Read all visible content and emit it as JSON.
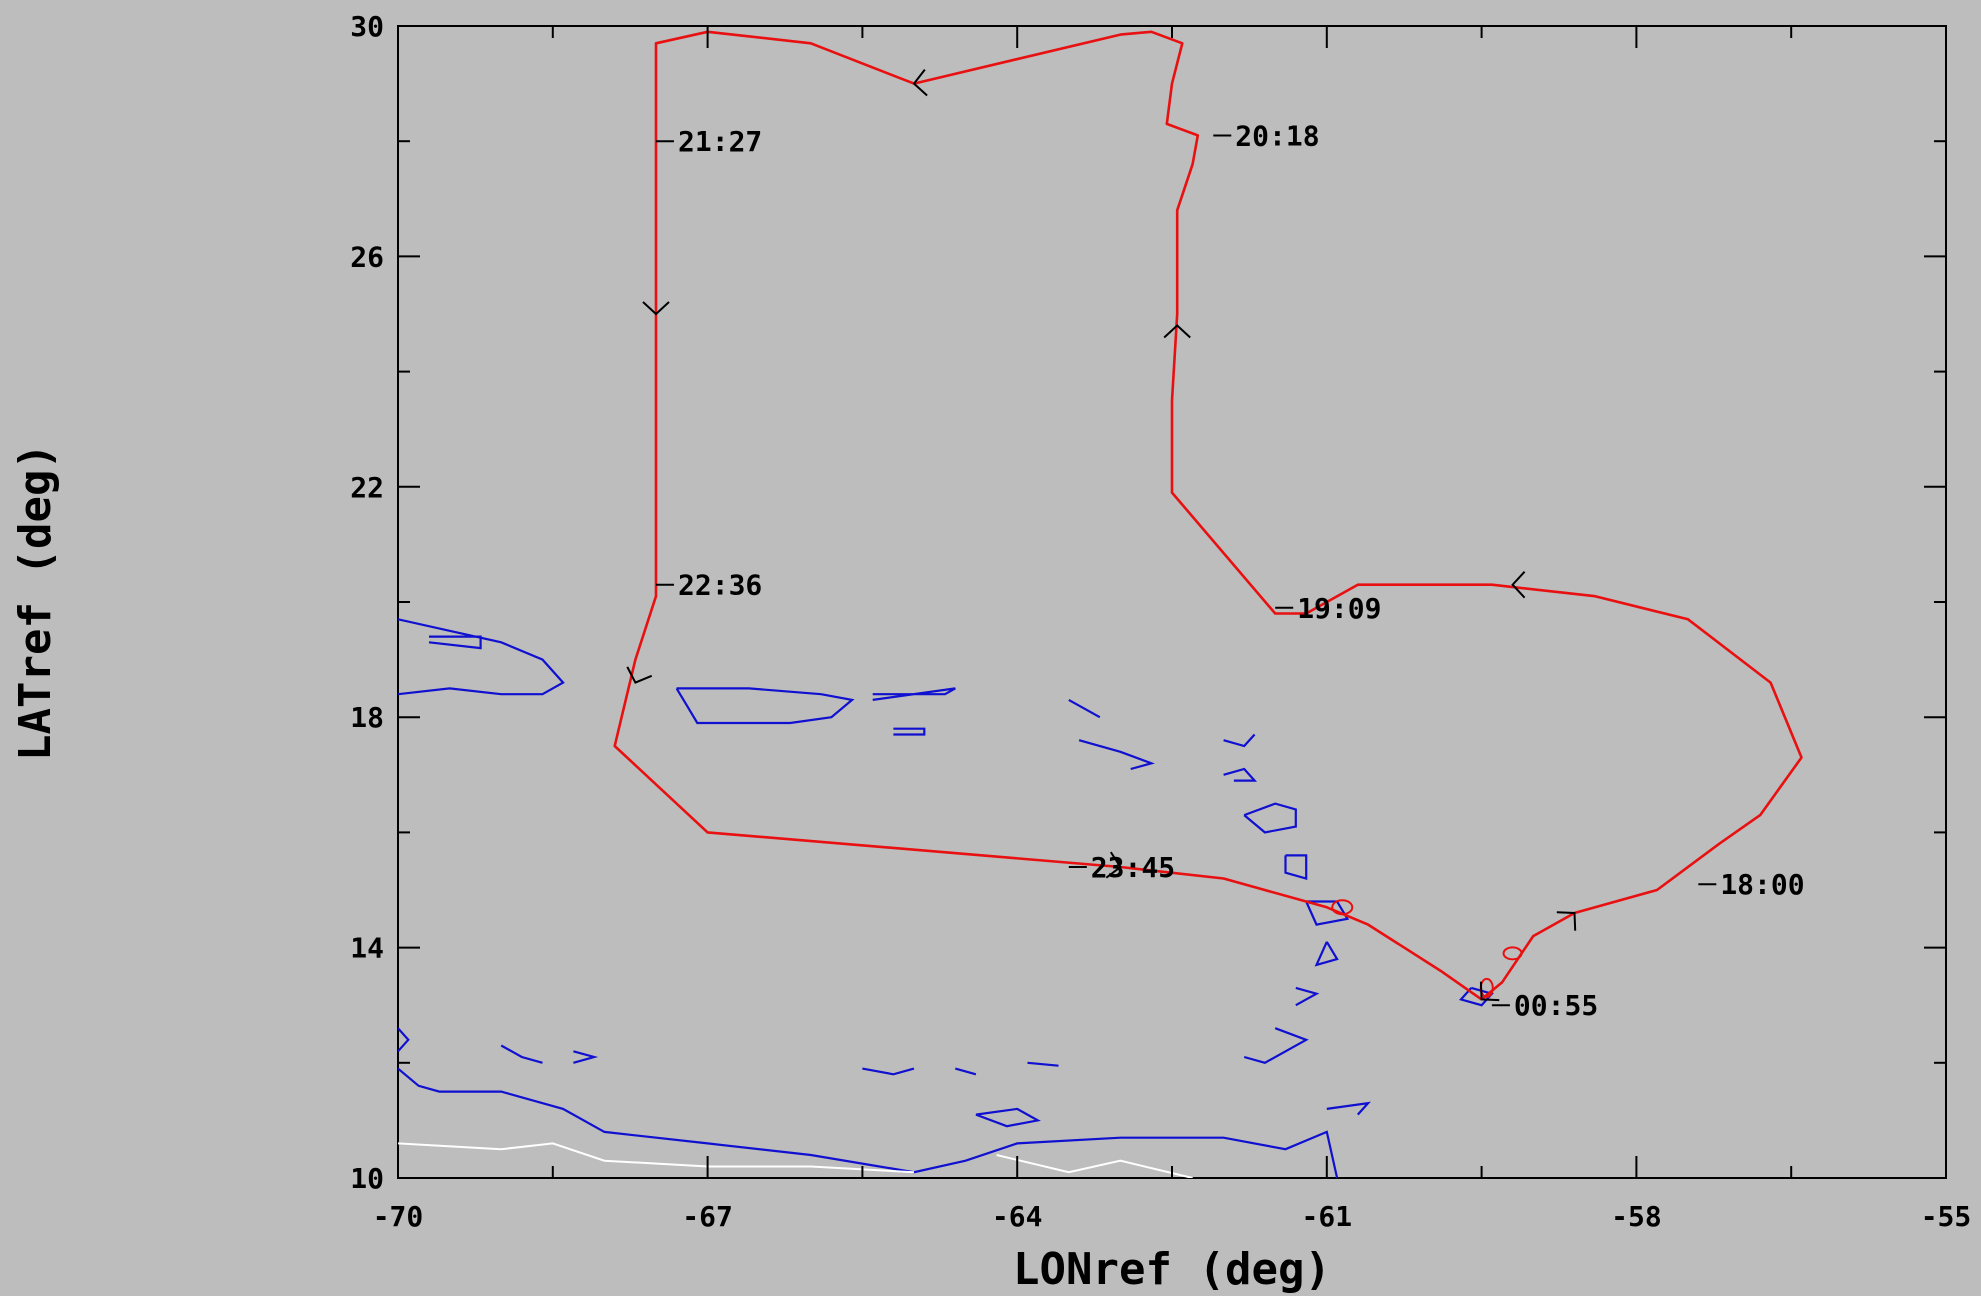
{
  "chart_data": {
    "type": "line",
    "xlabel": "LONref (deg)",
    "ylabel": "LATref (deg)",
    "xlim": [
      -70,
      -55
    ],
    "ylim": [
      10,
      30
    ],
    "x_ticks": [
      "-70",
      "-67",
      "-64",
      "-61",
      "-58",
      "-55"
    ],
    "y_ticks": [
      "10",
      "14",
      "18",
      "22",
      "26",
      "30"
    ],
    "colors": {
      "track": "#e81010",
      "coast": "#1010d0",
      "border": "#ffffff",
      "background": "#bdbdbd",
      "river": "#9fd6e8"
    },
    "series": [
      {
        "type": "flight-track",
        "points": [
          [
            -59.5,
            13.1
          ],
          [
            -59.3,
            13.4
          ],
          [
            -59.0,
            14.2
          ],
          [
            -58.6,
            14.6
          ],
          [
            -57.8,
            15.0
          ],
          [
            -57.2,
            15.8
          ],
          [
            -56.8,
            16.3
          ],
          [
            -56.4,
            17.3
          ],
          [
            -56.7,
            18.6
          ],
          [
            -57.5,
            19.7
          ],
          [
            -58.4,
            20.1
          ],
          [
            -59.4,
            20.3
          ],
          [
            -60.7,
            20.3
          ],
          [
            -61.2,
            19.8
          ],
          [
            -61.5,
            19.8
          ],
          [
            -62.5,
            21.9
          ],
          [
            -62.5,
            23.5
          ],
          [
            -62.45,
            25.0
          ],
          [
            -62.45,
            26.8
          ],
          [
            -62.3,
            27.6
          ],
          [
            -62.25,
            28.1
          ],
          [
            -62.55,
            28.3
          ],
          [
            -62.5,
            29.0
          ],
          [
            -62.4,
            29.7
          ],
          [
            -62.7,
            29.9
          ],
          [
            -63.0,
            29.85
          ],
          [
            -65.0,
            29.0
          ],
          [
            -66.0,
            29.7
          ],
          [
            -67.0,
            29.9
          ],
          [
            -67.5,
            29.7
          ],
          [
            -67.5,
            27.0
          ],
          [
            -67.5,
            24.5
          ],
          [
            -67.5,
            20.1
          ],
          [
            -67.7,
            19.0
          ],
          [
            -67.9,
            17.5
          ],
          [
            -67.0,
            16.0
          ],
          [
            -63.0,
            15.4
          ],
          [
            -62.0,
            15.2
          ],
          [
            -61.0,
            14.7
          ],
          [
            -60.6,
            14.4
          ],
          [
            -59.9,
            13.6
          ],
          [
            -59.5,
            13.1
          ]
        ]
      }
    ],
    "annotations": [
      {
        "text": "21:27",
        "lon": -67.5,
        "lat": 28.0
      },
      {
        "text": "20:18",
        "lon": -62.1,
        "lat": 28.1
      },
      {
        "text": "22:36",
        "lon": -67.5,
        "lat": 20.3
      },
      {
        "text": "19:09",
        "lon": -61.5,
        "lat": 19.9
      },
      {
        "text": "18:00",
        "lon": -57.4,
        "lat": 15.1
      },
      {
        "text": "23:45",
        "lon": -63.5,
        "lat": 15.4
      },
      {
        "text": "00:55",
        "lon": -59.4,
        "lat": 13.0
      }
    ],
    "direction_arrows": [
      {
        "lon": -65.0,
        "lat": 29.0,
        "heading": 265
      },
      {
        "lon": -67.5,
        "lat": 25.0,
        "heading": 180
      },
      {
        "lon": -62.45,
        "lat": 24.8,
        "heading": 0
      },
      {
        "lon": -59.2,
        "lat": 20.3,
        "heading": 270
      },
      {
        "lon": -58.6,
        "lat": 14.6,
        "heading": 45
      },
      {
        "lon": -63.0,
        "lat": 15.4,
        "heading": 100
      },
      {
        "lon": -67.7,
        "lat": 18.6,
        "heading": 200
      },
      {
        "lon": -59.5,
        "lat": 13.1,
        "heading": 225
      }
    ],
    "coastlines": [
      [
        [
          -70.0,
          19.7
        ],
        [
          -69.5,
          19.5
        ],
        [
          -69.0,
          19.3
        ],
        [
          -68.6,
          19.0
        ],
        [
          -68.4,
          18.6
        ],
        [
          -68.6,
          18.4
        ],
        [
          -69.0,
          18.4
        ],
        [
          -69.5,
          18.5
        ],
        [
          -70.0,
          18.4
        ]
      ],
      [
        [
          -69.7,
          19.4
        ],
        [
          -69.2,
          19.4
        ],
        [
          -69.2,
          19.2
        ],
        [
          -69.7,
          19.3
        ]
      ],
      [
        [
          -67.3,
          18.5
        ],
        [
          -66.6,
          18.5
        ],
        [
          -65.9,
          18.4
        ],
        [
          -65.6,
          18.3
        ],
        [
          -65.8,
          18.0
        ],
        [
          -66.2,
          17.9
        ],
        [
          -67.1,
          17.9
        ],
        [
          -67.2,
          18.2
        ],
        [
          -67.3,
          18.5
        ]
      ],
      [
        [
          -65.4,
          18.4
        ],
        [
          -64.7,
          18.4
        ],
        [
          -64.6,
          18.5
        ],
        [
          -65.4,
          18.3
        ]
      ],
      [
        [
          -65.2,
          17.8
        ],
        [
          -64.9,
          17.8
        ],
        [
          -64.9,
          17.7
        ],
        [
          -65.2,
          17.7
        ]
      ],
      [
        [
          -63.5,
          18.3
        ],
        [
          -63.2,
          18.0
        ]
      ],
      [
        [
          -63.4,
          17.6
        ],
        [
          -63.0,
          17.4
        ],
        [
          -62.7,
          17.2
        ],
        [
          -62.9,
          17.1
        ]
      ],
      [
        [
          -62.0,
          17.6
        ],
        [
          -61.8,
          17.5
        ],
        [
          -61.7,
          17.7
        ]
      ],
      [
        [
          -62.0,
          17.0
        ],
        [
          -61.8,
          17.1
        ],
        [
          -61.7,
          16.9
        ],
        [
          -61.9,
          16.9
        ]
      ],
      [
        [
          -61.8,
          16.3
        ],
        [
          -61.5,
          16.5
        ],
        [
          -61.3,
          16.4
        ],
        [
          -61.3,
          16.1
        ],
        [
          -61.6,
          16.0
        ],
        [
          -61.8,
          16.3
        ]
      ],
      [
        [
          -61.4,
          15.6
        ],
        [
          -61.2,
          15.6
        ],
        [
          -61.2,
          15.2
        ],
        [
          -61.4,
          15.3
        ],
        [
          -61.4,
          15.6
        ]
      ],
      [
        [
          -61.2,
          14.8
        ],
        [
          -60.9,
          14.8
        ],
        [
          -60.8,
          14.5
        ],
        [
          -61.1,
          14.4
        ],
        [
          -61.2,
          14.8
        ]
      ],
      [
        [
          -61.0,
          14.1
        ],
        [
          -60.9,
          13.8
        ],
        [
          -61.1,
          13.7
        ],
        [
          -61.0,
          14.1
        ]
      ],
      [
        [
          -61.3,
          13.3
        ],
        [
          -61.1,
          13.2
        ],
        [
          -61.3,
          13.0
        ]
      ],
      [
        [
          -61.5,
          12.6
        ],
        [
          -61.2,
          12.4
        ],
        [
          -61.6,
          12.0
        ],
        [
          -61.8,
          12.1
        ]
      ],
      [
        [
          -59.6,
          13.3
        ],
        [
          -59.4,
          13.2
        ],
        [
          -59.5,
          13.0
        ],
        [
          -59.7,
          13.1
        ],
        [
          -59.6,
          13.3
        ]
      ],
      [
        [
          -70.0,
          12.6
        ],
        [
          -69.9,
          12.4
        ],
        [
          -70.0,
          12.2
        ]
      ],
      [
        [
          -69.0,
          12.3
        ],
        [
          -68.8,
          12.1
        ],
        [
          -68.6,
          12.0
        ]
      ],
      [
        [
          -68.3,
          12.2
        ],
        [
          -68.1,
          12.1
        ],
        [
          -68.3,
          12.0
        ]
      ],
      [
        [
          -70.0,
          11.9
        ],
        [
          -69.8,
          11.6
        ],
        [
          -69.6,
          11.5
        ],
        [
          -69.0,
          11.5
        ],
        [
          -68.4,
          11.2
        ],
        [
          -68.0,
          10.8
        ],
        [
          -67.0,
          10.6
        ],
        [
          -66.0,
          10.4
        ],
        [
          -65.0,
          10.1
        ],
        [
          -64.5,
          10.3
        ],
        [
          -64.0,
          10.6
        ],
        [
          -63.0,
          10.7
        ],
        [
          -62.0,
          10.7
        ],
        [
          -61.4,
          10.5
        ],
        [
          -61.0,
          10.8
        ],
        [
          -60.9,
          10.0
        ]
      ],
      [
        [
          -64.4,
          11.1
        ],
        [
          -64.0,
          11.2
        ],
        [
          -63.8,
          11.0
        ],
        [
          -64.1,
          10.9
        ],
        [
          -64.4,
          11.1
        ]
      ],
      [
        [
          -61.0,
          11.2
        ],
        [
          -60.6,
          11.3
        ],
        [
          -60.7,
          11.1
        ]
      ],
      [
        [
          -63.9,
          12.0
        ],
        [
          -63.6,
          11.95
        ]
      ],
      [
        [
          -65.5,
          11.9
        ],
        [
          -65.2,
          11.8
        ],
        [
          -65.0,
          11.9
        ]
      ],
      [
        [
          -64.6,
          11.9
        ],
        [
          -64.4,
          11.8
        ]
      ]
    ],
    "borders": [
      [
        [
          -70.0,
          10.6
        ],
        [
          -69.0,
          10.5
        ],
        [
          -68.5,
          10.6
        ],
        [
          -68.0,
          10.3
        ],
        [
          -67.0,
          10.2
        ],
        [
          -66.0,
          10.2
        ],
        [
          -65.0,
          10.1
        ]
      ],
      [
        [
          -64.2,
          10.4
        ],
        [
          -63.5,
          10.1
        ],
        [
          -63.0,
          10.3
        ],
        [
          -62.3,
          10.0
        ]
      ]
    ]
  }
}
